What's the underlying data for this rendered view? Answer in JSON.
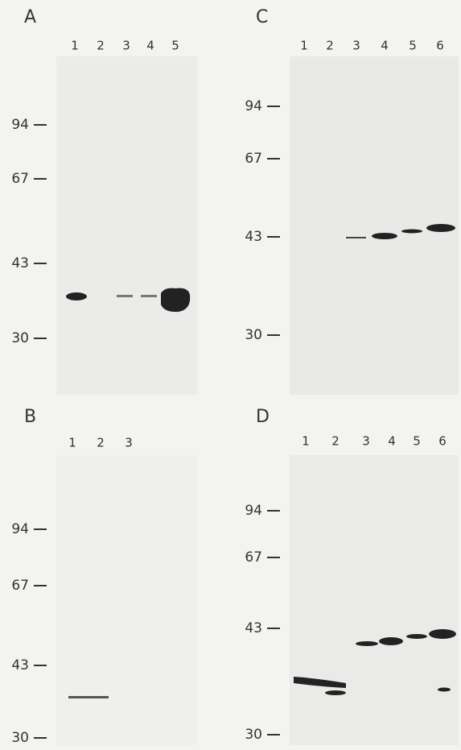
{
  "panels": [
    {
      "label": "A",
      "lanes": [
        "1",
        "2",
        "3",
        "4",
        "5"
      ],
      "markers": [
        "94",
        "67",
        "43",
        "30"
      ]
    },
    {
      "label": "B",
      "lanes": [
        "1",
        "2",
        "3"
      ],
      "markers": [
        "94",
        "67",
        "43",
        "30"
      ]
    },
    {
      "label": "C",
      "lanes": [
        "1",
        "2",
        "3",
        "4",
        "5",
        "6"
      ],
      "markers": [
        "94",
        "67",
        "43",
        "30"
      ]
    },
    {
      "label": "D",
      "lanes": [
        "1",
        "2",
        "3",
        "4",
        "5",
        "6"
      ],
      "markers": [
        "94",
        "67",
        "43",
        "30"
      ]
    }
  ]
}
